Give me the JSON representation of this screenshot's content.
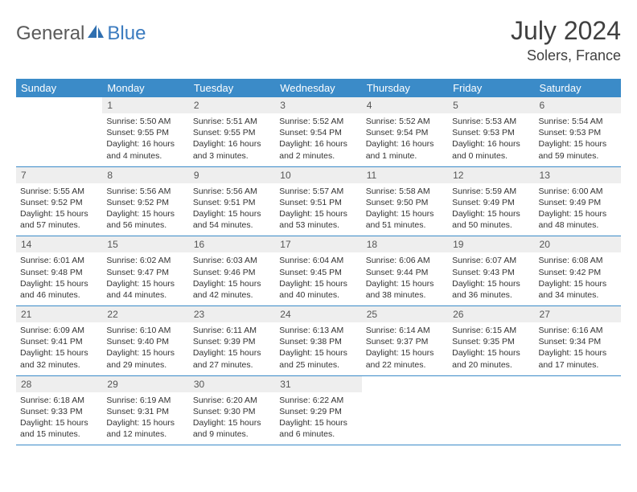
{
  "brand": {
    "part1": "General",
    "part2": "Blue"
  },
  "title": {
    "month": "July 2024",
    "location": "Solers, France"
  },
  "colors": {
    "header_bg": "#3b8bc8",
    "header_text": "#ffffff",
    "daynum_bg": "#eeeeee",
    "daynum_text": "#555555",
    "body_text": "#333333",
    "rule": "#3b8bc8",
    "brand_gray": "#5a5a5a",
    "brand_blue": "#3b7bbf"
  },
  "layout": {
    "rows": 6,
    "cols": 7,
    "first_day_col": 1
  },
  "weekdays": [
    "Sunday",
    "Monday",
    "Tuesday",
    "Wednesday",
    "Thursday",
    "Friday",
    "Saturday"
  ],
  "days": [
    {
      "n": "1",
      "sr": "Sunrise: 5:50 AM",
      "ss": "Sunset: 9:55 PM",
      "dl": "Daylight: 16 hours and 4 minutes."
    },
    {
      "n": "2",
      "sr": "Sunrise: 5:51 AM",
      "ss": "Sunset: 9:55 PM",
      "dl": "Daylight: 16 hours and 3 minutes."
    },
    {
      "n": "3",
      "sr": "Sunrise: 5:52 AM",
      "ss": "Sunset: 9:54 PM",
      "dl": "Daylight: 16 hours and 2 minutes."
    },
    {
      "n": "4",
      "sr": "Sunrise: 5:52 AM",
      "ss": "Sunset: 9:54 PM",
      "dl": "Daylight: 16 hours and 1 minute."
    },
    {
      "n": "5",
      "sr": "Sunrise: 5:53 AM",
      "ss": "Sunset: 9:53 PM",
      "dl": "Daylight: 16 hours and 0 minutes."
    },
    {
      "n": "6",
      "sr": "Sunrise: 5:54 AM",
      "ss": "Sunset: 9:53 PM",
      "dl": "Daylight: 15 hours and 59 minutes."
    },
    {
      "n": "7",
      "sr": "Sunrise: 5:55 AM",
      "ss": "Sunset: 9:52 PM",
      "dl": "Daylight: 15 hours and 57 minutes."
    },
    {
      "n": "8",
      "sr": "Sunrise: 5:56 AM",
      "ss": "Sunset: 9:52 PM",
      "dl": "Daylight: 15 hours and 56 minutes."
    },
    {
      "n": "9",
      "sr": "Sunrise: 5:56 AM",
      "ss": "Sunset: 9:51 PM",
      "dl": "Daylight: 15 hours and 54 minutes."
    },
    {
      "n": "10",
      "sr": "Sunrise: 5:57 AM",
      "ss": "Sunset: 9:51 PM",
      "dl": "Daylight: 15 hours and 53 minutes."
    },
    {
      "n": "11",
      "sr": "Sunrise: 5:58 AM",
      "ss": "Sunset: 9:50 PM",
      "dl": "Daylight: 15 hours and 51 minutes."
    },
    {
      "n": "12",
      "sr": "Sunrise: 5:59 AM",
      "ss": "Sunset: 9:49 PM",
      "dl": "Daylight: 15 hours and 50 minutes."
    },
    {
      "n": "13",
      "sr": "Sunrise: 6:00 AM",
      "ss": "Sunset: 9:49 PM",
      "dl": "Daylight: 15 hours and 48 minutes."
    },
    {
      "n": "14",
      "sr": "Sunrise: 6:01 AM",
      "ss": "Sunset: 9:48 PM",
      "dl": "Daylight: 15 hours and 46 minutes."
    },
    {
      "n": "15",
      "sr": "Sunrise: 6:02 AM",
      "ss": "Sunset: 9:47 PM",
      "dl": "Daylight: 15 hours and 44 minutes."
    },
    {
      "n": "16",
      "sr": "Sunrise: 6:03 AM",
      "ss": "Sunset: 9:46 PM",
      "dl": "Daylight: 15 hours and 42 minutes."
    },
    {
      "n": "17",
      "sr": "Sunrise: 6:04 AM",
      "ss": "Sunset: 9:45 PM",
      "dl": "Daylight: 15 hours and 40 minutes."
    },
    {
      "n": "18",
      "sr": "Sunrise: 6:06 AM",
      "ss": "Sunset: 9:44 PM",
      "dl": "Daylight: 15 hours and 38 minutes."
    },
    {
      "n": "19",
      "sr": "Sunrise: 6:07 AM",
      "ss": "Sunset: 9:43 PM",
      "dl": "Daylight: 15 hours and 36 minutes."
    },
    {
      "n": "20",
      "sr": "Sunrise: 6:08 AM",
      "ss": "Sunset: 9:42 PM",
      "dl": "Daylight: 15 hours and 34 minutes."
    },
    {
      "n": "21",
      "sr": "Sunrise: 6:09 AM",
      "ss": "Sunset: 9:41 PM",
      "dl": "Daylight: 15 hours and 32 minutes."
    },
    {
      "n": "22",
      "sr": "Sunrise: 6:10 AM",
      "ss": "Sunset: 9:40 PM",
      "dl": "Daylight: 15 hours and 29 minutes."
    },
    {
      "n": "23",
      "sr": "Sunrise: 6:11 AM",
      "ss": "Sunset: 9:39 PM",
      "dl": "Daylight: 15 hours and 27 minutes."
    },
    {
      "n": "24",
      "sr": "Sunrise: 6:13 AM",
      "ss": "Sunset: 9:38 PM",
      "dl": "Daylight: 15 hours and 25 minutes."
    },
    {
      "n": "25",
      "sr": "Sunrise: 6:14 AM",
      "ss": "Sunset: 9:37 PM",
      "dl": "Daylight: 15 hours and 22 minutes."
    },
    {
      "n": "26",
      "sr": "Sunrise: 6:15 AM",
      "ss": "Sunset: 9:35 PM",
      "dl": "Daylight: 15 hours and 20 minutes."
    },
    {
      "n": "27",
      "sr": "Sunrise: 6:16 AM",
      "ss": "Sunset: 9:34 PM",
      "dl": "Daylight: 15 hours and 17 minutes."
    },
    {
      "n": "28",
      "sr": "Sunrise: 6:18 AM",
      "ss": "Sunset: 9:33 PM",
      "dl": "Daylight: 15 hours and 15 minutes."
    },
    {
      "n": "29",
      "sr": "Sunrise: 6:19 AM",
      "ss": "Sunset: 9:31 PM",
      "dl": "Daylight: 15 hours and 12 minutes."
    },
    {
      "n": "30",
      "sr": "Sunrise: 6:20 AM",
      "ss": "Sunset: 9:30 PM",
      "dl": "Daylight: 15 hours and 9 minutes."
    },
    {
      "n": "31",
      "sr": "Sunrise: 6:22 AM",
      "ss": "Sunset: 9:29 PM",
      "dl": "Daylight: 15 hours and 6 minutes."
    }
  ]
}
